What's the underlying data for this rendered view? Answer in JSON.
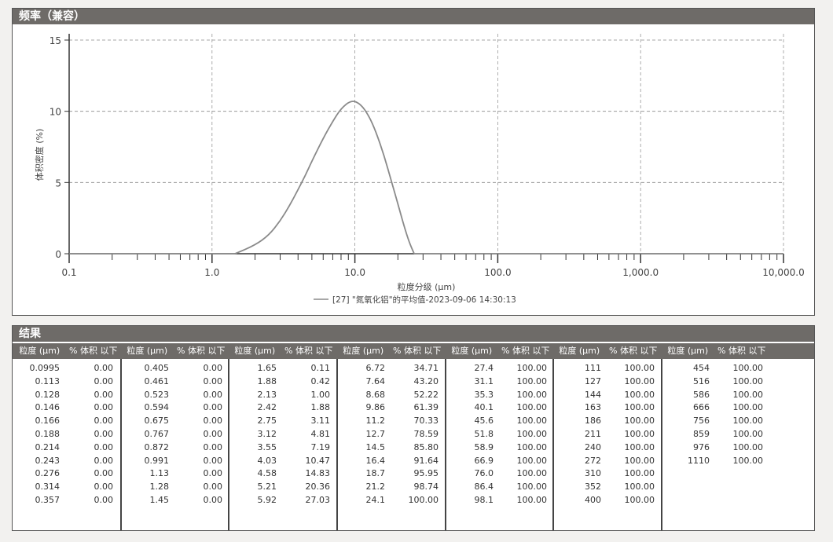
{
  "chart_panel": {
    "title": "频率（兼容）"
  },
  "chart_data": {
    "type": "line",
    "xscale": "log",
    "xlim": [
      0.1,
      10000
    ],
    "ylim": [
      0,
      15
    ],
    "grid": true,
    "xlabel": "粒度分级 (μm)",
    "ylabel": "体积密度 (%)",
    "xticks": [
      "0.1",
      "1.0",
      "10.0",
      "100.0",
      "1,000.0",
      "10,000.0"
    ],
    "yticks": [
      "0",
      "5",
      "10",
      "15"
    ],
    "legend_position": "bottom-center",
    "series": [
      {
        "name": "[27] \"氮氧化铝\"的平均值-2023-09-06 14:30:13",
        "color": "#8a8a8a",
        "x": [
          1.45,
          2.0,
          2.5,
          3.0,
          3.5,
          4.0,
          4.5,
          5.0,
          6.0,
          7.0,
          8.0,
          9.5,
          11.0,
          12.5,
          14.0,
          16.0,
          18.0,
          20.0,
          22.0,
          24.0,
          26.0
        ],
        "y": [
          0,
          0.6,
          1.3,
          2.3,
          3.4,
          4.5,
          5.5,
          6.5,
          8.1,
          9.3,
          10.2,
          10.8,
          10.5,
          9.7,
          8.6,
          6.9,
          5.1,
          3.5,
          2.0,
          0.8,
          0
        ]
      }
    ]
  },
  "results": {
    "title": "结果",
    "col_size": "粒度 (μm)",
    "col_pct": "% 体积 以下",
    "groups": [
      [
        [
          "0.0995",
          "0.00"
        ],
        [
          "0.113",
          "0.00"
        ],
        [
          "0.128",
          "0.00"
        ],
        [
          "0.146",
          "0.00"
        ],
        [
          "0.166",
          "0.00"
        ],
        [
          "0.188",
          "0.00"
        ],
        [
          "0.214",
          "0.00"
        ],
        [
          "0.243",
          "0.00"
        ],
        [
          "0.276",
          "0.00"
        ],
        [
          "0.314",
          "0.00"
        ],
        [
          "0.357",
          "0.00"
        ]
      ],
      [
        [
          "0.405",
          "0.00"
        ],
        [
          "0.461",
          "0.00"
        ],
        [
          "0.523",
          "0.00"
        ],
        [
          "0.594",
          "0.00"
        ],
        [
          "0.675",
          "0.00"
        ],
        [
          "0.767",
          "0.00"
        ],
        [
          "0.872",
          "0.00"
        ],
        [
          "0.991",
          "0.00"
        ],
        [
          "1.13",
          "0.00"
        ],
        [
          "1.28",
          "0.00"
        ],
        [
          "1.45",
          "0.00"
        ]
      ],
      [
        [
          "1.65",
          "0.11"
        ],
        [
          "1.88",
          "0.42"
        ],
        [
          "2.13",
          "1.00"
        ],
        [
          "2.42",
          "1.88"
        ],
        [
          "2.75",
          "3.11"
        ],
        [
          "3.12",
          "4.81"
        ],
        [
          "3.55",
          "7.19"
        ],
        [
          "4.03",
          "10.47"
        ],
        [
          "4.58",
          "14.83"
        ],
        [
          "5.21",
          "20.36"
        ],
        [
          "5.92",
          "27.03"
        ]
      ],
      [
        [
          "6.72",
          "34.71"
        ],
        [
          "7.64",
          "43.20"
        ],
        [
          "8.68",
          "52.22"
        ],
        [
          "9.86",
          "61.39"
        ],
        [
          "11.2",
          "70.33"
        ],
        [
          "12.7",
          "78.59"
        ],
        [
          "14.5",
          "85.80"
        ],
        [
          "16.4",
          "91.64"
        ],
        [
          "18.7",
          "95.95"
        ],
        [
          "21.2",
          "98.74"
        ],
        [
          "24.1",
          "100.00"
        ]
      ],
      [
        [
          "27.4",
          "100.00"
        ],
        [
          "31.1",
          "100.00"
        ],
        [
          "35.3",
          "100.00"
        ],
        [
          "40.1",
          "100.00"
        ],
        [
          "45.6",
          "100.00"
        ],
        [
          "51.8",
          "100.00"
        ],
        [
          "58.9",
          "100.00"
        ],
        [
          "66.9",
          "100.00"
        ],
        [
          "76.0",
          "100.00"
        ],
        [
          "86.4",
          "100.00"
        ],
        [
          "98.1",
          "100.00"
        ]
      ],
      [
        [
          "111",
          "100.00"
        ],
        [
          "127",
          "100.00"
        ],
        [
          "144",
          "100.00"
        ],
        [
          "163",
          "100.00"
        ],
        [
          "186",
          "100.00"
        ],
        [
          "211",
          "100.00"
        ],
        [
          "240",
          "100.00"
        ],
        [
          "272",
          "100.00"
        ],
        [
          "310",
          "100.00"
        ],
        [
          "352",
          "100.00"
        ],
        [
          "400",
          "100.00"
        ]
      ],
      [
        [
          "454",
          "100.00"
        ],
        [
          "516",
          "100.00"
        ],
        [
          "586",
          "100.00"
        ],
        [
          "666",
          "100.00"
        ],
        [
          "756",
          "100.00"
        ],
        [
          "859",
          "100.00"
        ],
        [
          "976",
          "100.00"
        ],
        [
          "1110",
          "100.00"
        ]
      ]
    ]
  }
}
